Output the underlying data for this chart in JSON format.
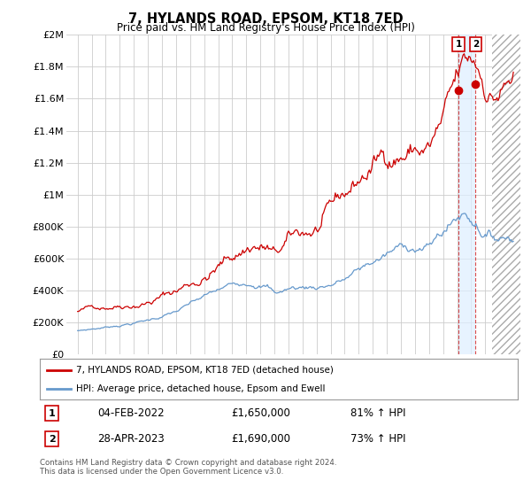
{
  "title": "7, HYLANDS ROAD, EPSOM, KT18 7ED",
  "subtitle": "Price paid vs. HM Land Registry's House Price Index (HPI)",
  "ylim": [
    0,
    2000000
  ],
  "yticks": [
    0,
    200000,
    400000,
    600000,
    800000,
    1000000,
    1200000,
    1400000,
    1600000,
    1800000,
    2000000
  ],
  "ytick_labels": [
    "£0",
    "£200K",
    "£400K",
    "£600K",
    "£800K",
    "£1M",
    "£1.2M",
    "£1.4M",
    "£1.6M",
    "£1.8M",
    "£2M"
  ],
  "year_start": 1995,
  "year_end": 2026,
  "red_color": "#cc0000",
  "blue_color": "#6699cc",
  "sale1_year": 2022.09,
  "sale1_price_val": 1650000,
  "sale2_year": 2023.32,
  "sale2_price_val": 1690000,
  "sale1_date": "04-FEB-2022",
  "sale1_price": "£1,650,000",
  "sale1_hpi": "81% ↑ HPI",
  "sale2_date": "28-APR-2023",
  "sale2_price": "£1,690,000",
  "sale2_hpi": "73% ↑ HPI",
  "legend_label1": "7, HYLANDS ROAD, EPSOM, KT18 7ED (detached house)",
  "legend_label2": "HPI: Average price, detached house, Epsom and Ewell",
  "footnote": "Contains HM Land Registry data © Crown copyright and database right 2024.\nThis data is licensed under the Open Government Licence v3.0.",
  "bg_color": "#ffffff",
  "grid_color": "#cccccc",
  "future_cutoff": 2024.5
}
